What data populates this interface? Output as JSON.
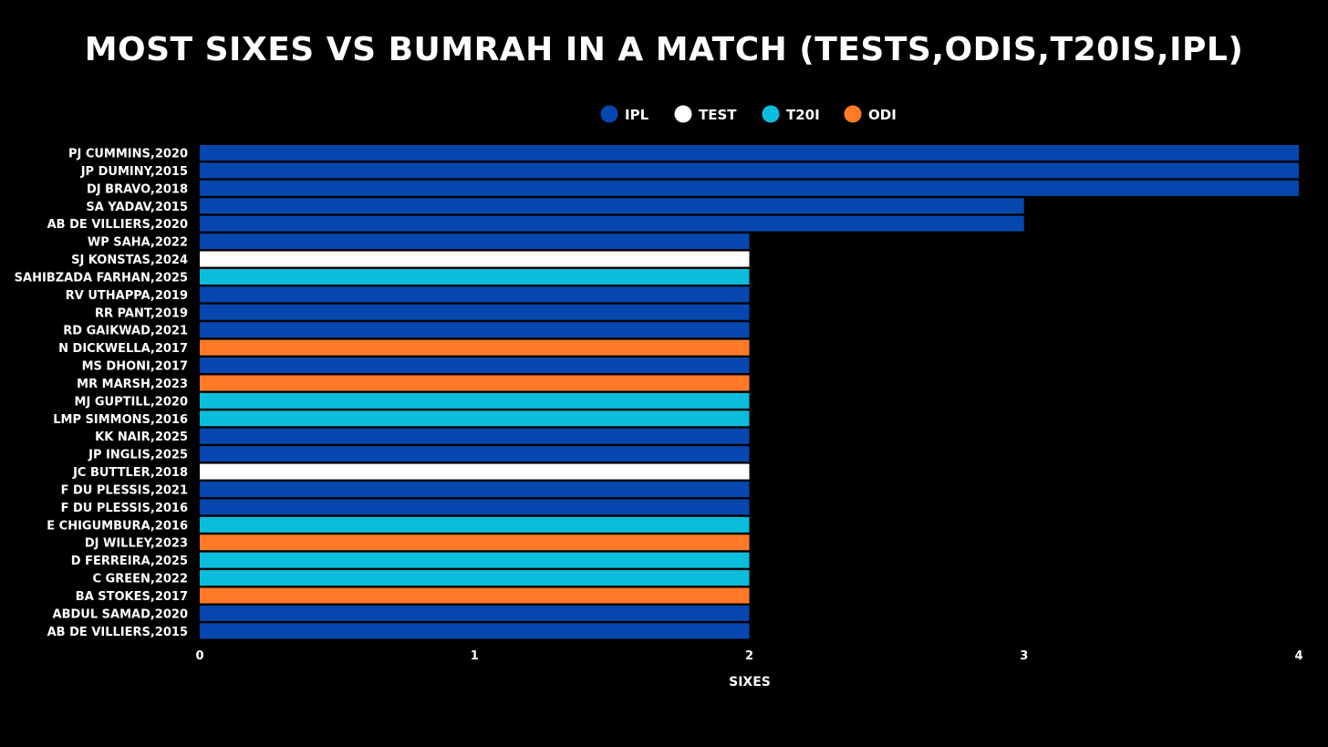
{
  "chart_data": {
    "type": "bar",
    "orientation": "horizontal",
    "title": "MOST SIXES VS BUMRAH IN A MATCH (TESTS,ODIS,T20IS,IPL)",
    "xlabel": "SIXES",
    "ylabel": "",
    "xlim": [
      0,
      4
    ],
    "x_ticks": [
      "0",
      "1",
      "2",
      "3",
      "4"
    ],
    "grid": false,
    "legend_position": "top-center",
    "legend": [
      {
        "name": "IPL",
        "color": "#0547AE"
      },
      {
        "name": "TEST",
        "color": "#FFFFFF"
      },
      {
        "name": "T20I",
        "color": "#0BBDDC"
      },
      {
        "name": "ODI",
        "color": "#FF7A27"
      }
    ],
    "bars": [
      {
        "label": "PJ CUMMINS,2020",
        "value": 4,
        "format": "IPL"
      },
      {
        "label": "JP DUMINY,2015",
        "value": 4,
        "format": "IPL"
      },
      {
        "label": "DJ BRAVO,2018",
        "value": 4,
        "format": "IPL"
      },
      {
        "label": "SA YADAV,2015",
        "value": 3,
        "format": "IPL"
      },
      {
        "label": "AB DE VILLIERS,2020",
        "value": 3,
        "format": "IPL"
      },
      {
        "label": "WP SAHA,2022",
        "value": 2,
        "format": "IPL"
      },
      {
        "label": "SJ KONSTAS,2024",
        "value": 2,
        "format": "TEST"
      },
      {
        "label": "SAHIBZADA FARHAN,2025",
        "value": 2,
        "format": "T20I"
      },
      {
        "label": "RV UTHAPPA,2019",
        "value": 2,
        "format": "IPL"
      },
      {
        "label": "RR PANT,2019",
        "value": 2,
        "format": "IPL"
      },
      {
        "label": "RD GAIKWAD,2021",
        "value": 2,
        "format": "IPL"
      },
      {
        "label": "N DICKWELLA,2017",
        "value": 2,
        "format": "ODI"
      },
      {
        "label": "MS DHONI,2017",
        "value": 2,
        "format": "IPL"
      },
      {
        "label": "MR MARSH,2023",
        "value": 2,
        "format": "ODI"
      },
      {
        "label": "MJ GUPTILL,2020",
        "value": 2,
        "format": "T20I"
      },
      {
        "label": "LMP SIMMONS,2016",
        "value": 2,
        "format": "T20I"
      },
      {
        "label": "KK NAIR,2025",
        "value": 2,
        "format": "IPL"
      },
      {
        "label": "JP INGLIS,2025",
        "value": 2,
        "format": "IPL"
      },
      {
        "label": "JC BUTTLER,2018",
        "value": 2,
        "format": "TEST"
      },
      {
        "label": "F DU PLESSIS,2021",
        "value": 2,
        "format": "IPL"
      },
      {
        "label": "F DU PLESSIS,2016",
        "value": 2,
        "format": "IPL"
      },
      {
        "label": "E CHIGUMBURA,2016",
        "value": 2,
        "format": "T20I"
      },
      {
        "label": "DJ WILLEY,2023",
        "value": 2,
        "format": "ODI"
      },
      {
        "label": "D FERREIRA,2025",
        "value": 2,
        "format": "T20I"
      },
      {
        "label": "C GREEN,2022",
        "value": 2,
        "format": "T20I"
      },
      {
        "label": "BA STOKES,2017",
        "value": 2,
        "format": "ODI"
      },
      {
        "label": "ABDUL SAMAD,2020",
        "value": 2,
        "format": "IPL"
      },
      {
        "label": "AB DE VILLIERS,2015",
        "value": 2,
        "format": "IPL"
      }
    ]
  }
}
